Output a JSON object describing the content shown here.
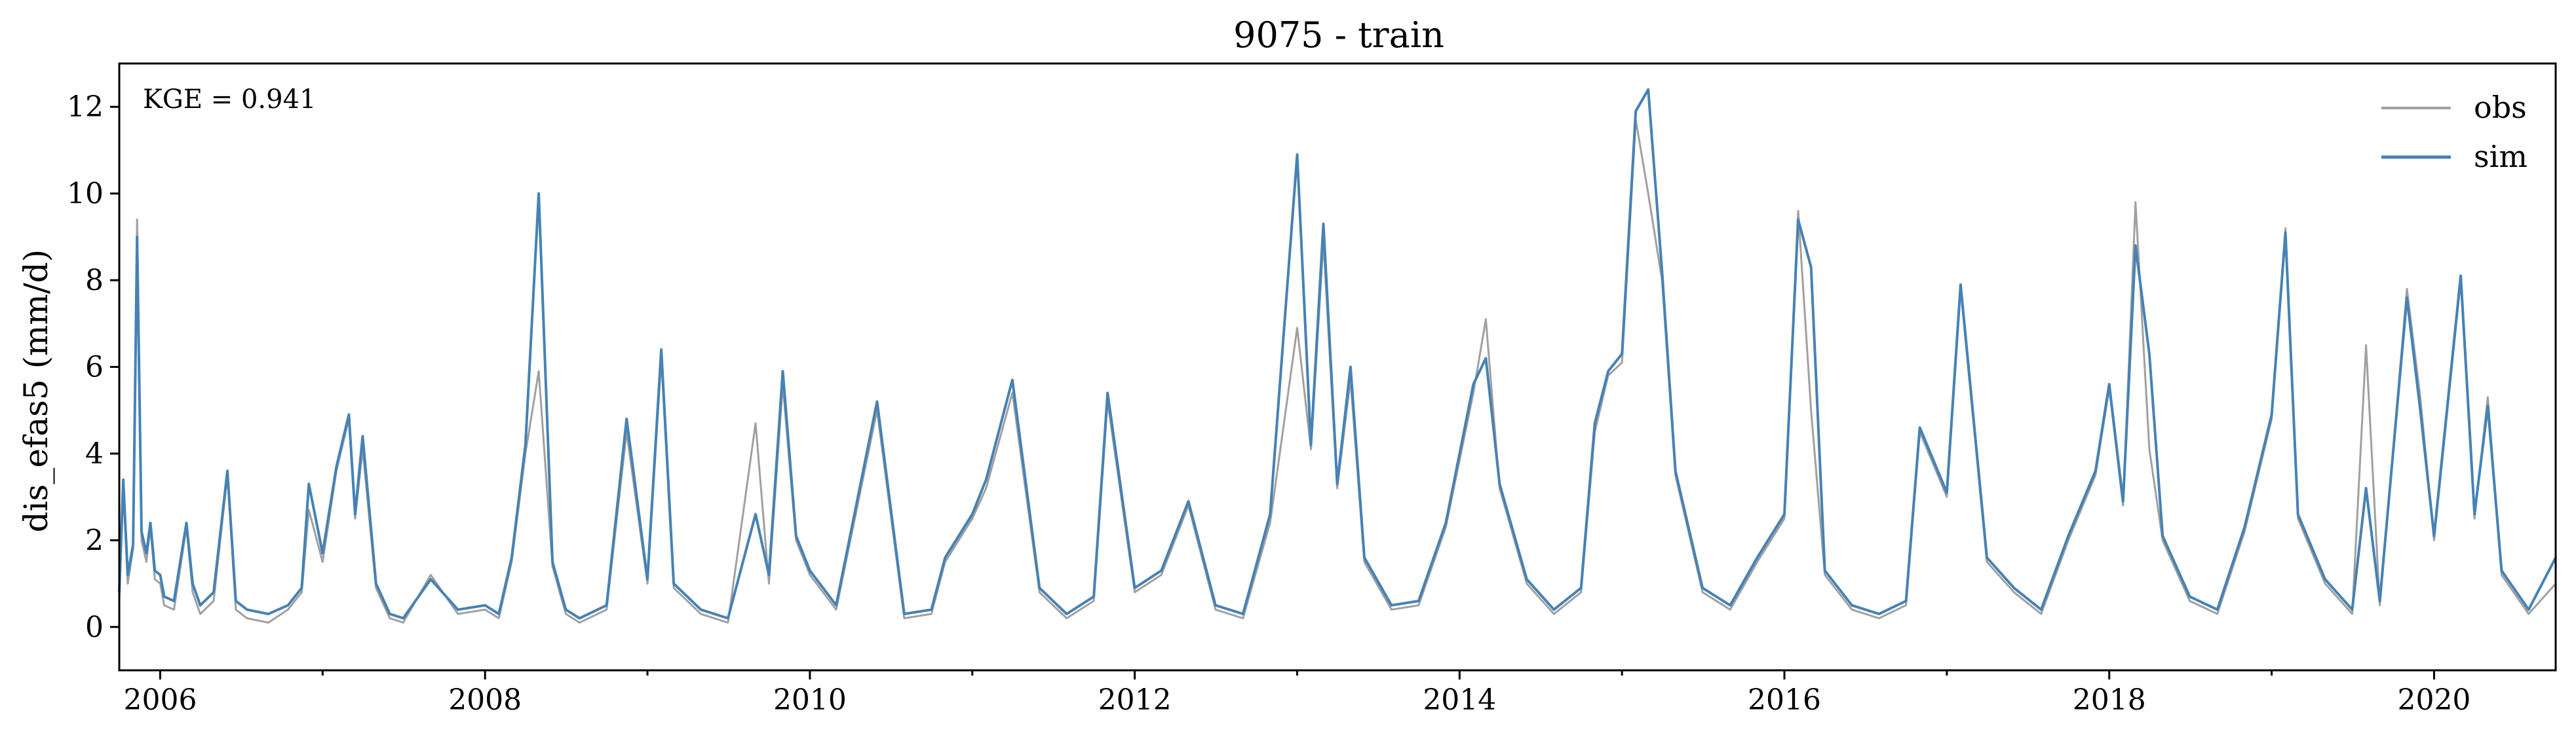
{
  "chart_data": {
    "type": "line",
    "title": "9075 - train",
    "xlabel": "",
    "ylabel": "dis_efas5 (mm/d)",
    "annotation": "KGE = 0.941",
    "xlim": [
      "2005-10-01",
      "2020-10-01"
    ],
    "ylim": [
      -1,
      13
    ],
    "x_ticks": [
      "2006",
      "2008",
      "2010",
      "2012",
      "2014",
      "2016",
      "2018",
      "2020"
    ],
    "y_ticks": [
      "0",
      "2",
      "4",
      "6",
      "8",
      "10",
      "12"
    ],
    "legend": {
      "placement": "top-right"
    },
    "grid": false,
    "series": [
      {
        "name": "obs",
        "color": "#a0a0a0",
        "x": [
          "2005-10-01",
          "2005-10-10",
          "2005-10-20",
          "2005-11-01",
          "2005-11-10",
          "2005-11-20",
          "2005-12-01",
          "2005-12-10",
          "2005-12-20",
          "2006-01-01",
          "2006-01-10",
          "2006-02-01",
          "2006-03-01",
          "2006-03-15",
          "2006-04-01",
          "2006-05-01",
          "2006-06-01",
          "2006-06-20",
          "2006-07-15",
          "2006-09-01",
          "2006-10-15",
          "2006-11-15",
          "2006-12-01",
          "2007-01-01",
          "2007-02-01",
          "2007-03-01",
          "2007-03-15",
          "2007-04-01",
          "2007-05-01",
          "2007-06-01",
          "2007-07-01",
          "2007-09-01",
          "2007-11-01",
          "2008-01-01",
          "2008-02-01",
          "2008-03-01",
          "2008-04-01",
          "2008-05-01",
          "2008-06-01",
          "2008-07-01",
          "2008-08-01",
          "2008-10-01",
          "2008-11-15",
          "2009-01-01",
          "2009-02-01",
          "2009-03-01",
          "2009-05-01",
          "2009-07-01",
          "2009-09-01",
          "2009-10-01",
          "2009-11-01",
          "2009-12-01",
          "2010-01-01",
          "2010-03-01",
          "2010-06-01",
          "2010-08-01",
          "2010-10-01",
          "2010-11-01",
          "2011-01-01",
          "2011-02-01",
          "2011-04-01",
          "2011-06-01",
          "2011-08-01",
          "2011-10-01",
          "2011-11-01",
          "2012-01-01",
          "2012-03-01",
          "2012-05-01",
          "2012-07-01",
          "2012-09-01",
          "2012-11-01",
          "2013-01-01",
          "2013-02-01",
          "2013-03-01",
          "2013-04-01",
          "2013-05-01",
          "2013-06-01",
          "2013-08-01",
          "2013-10-01",
          "2013-12-01",
          "2014-02-01",
          "2014-03-01",
          "2014-04-01",
          "2014-06-01",
          "2014-08-01",
          "2014-10-01",
          "2014-11-01",
          "2014-12-01",
          "2015-01-01",
          "2015-02-01",
          "2015-03-01",
          "2015-04-01",
          "2015-05-01",
          "2015-07-01",
          "2015-09-01",
          "2015-11-01",
          "2016-01-01",
          "2016-02-01",
          "2016-03-01",
          "2016-04-01",
          "2016-06-01",
          "2016-08-01",
          "2016-10-01",
          "2016-11-01",
          "2017-01-01",
          "2017-02-01",
          "2017-04-01",
          "2017-06-01",
          "2017-08-01",
          "2017-10-01",
          "2017-12-01",
          "2018-01-01",
          "2018-02-01",
          "2018-03-01",
          "2018-04-01",
          "2018-05-01",
          "2018-07-01",
          "2018-09-01",
          "2018-11-01",
          "2019-01-01",
          "2019-02-01",
          "2019-03-01",
          "2019-05-01",
          "2019-07-01",
          "2019-08-01",
          "2019-09-01",
          "2019-11-01",
          "2019-12-01",
          "2020-01-01",
          "2020-03-01",
          "2020-04-01",
          "2020-05-01",
          "2020-06-01",
          "2020-08-01",
          "2020-10-01"
        ],
        "values": [
          0.6,
          3.2,
          1.0,
          1.8,
          9.4,
          2.0,
          1.5,
          2.3,
          1.1,
          1.0,
          0.5,
          0.4,
          2.3,
          0.8,
          0.3,
          0.6,
          3.5,
          0.4,
          0.2,
          0.1,
          0.4,
          0.8,
          2.7,
          1.5,
          3.6,
          4.8,
          2.5,
          4.1,
          0.9,
          0.2,
          0.1,
          1.2,
          0.3,
          0.4,
          0.2,
          1.5,
          4.0,
          5.9,
          1.4,
          0.3,
          0.1,
          0.4,
          4.5,
          1.0,
          6.2,
          0.9,
          0.3,
          0.1,
          4.7,
          1.0,
          5.6,
          2.0,
          1.2,
          0.4,
          5.0,
          0.2,
          0.3,
          1.5,
          2.5,
          3.2,
          5.4,
          0.8,
          0.2,
          0.6,
          5.2,
          0.8,
          1.2,
          2.8,
          0.4,
          0.2,
          2.4,
          6.9,
          4.1,
          8.9,
          3.2,
          5.7,
          1.5,
          0.4,
          0.5,
          2.3,
          5.4,
          7.1,
          3.2,
          1.0,
          0.3,
          0.8,
          4.5,
          5.8,
          6.1,
          11.7,
          10.0,
          8.0,
          3.5,
          0.8,
          0.4,
          1.5,
          2.5,
          9.6,
          5.0,
          1.2,
          0.4,
          0.2,
          0.5,
          4.5,
          3.0,
          7.8,
          1.5,
          0.8,
          0.3,
          2.0,
          3.5,
          5.5,
          2.8,
          9.8,
          4.1,
          2.0,
          0.6,
          0.3,
          2.2,
          4.8,
          9.2,
          2.5,
          1.0,
          0.3,
          6.5,
          0.5,
          7.8,
          5.3,
          2.0,
          8.0,
          2.5,
          5.3,
          1.2,
          0.3,
          1.0
        ]
      },
      {
        "name": "sim",
        "color": "#4682b4",
        "x": [
          "2005-10-01",
          "2005-10-10",
          "2005-10-20",
          "2005-11-01",
          "2005-11-10",
          "2005-11-20",
          "2005-12-01",
          "2005-12-10",
          "2005-12-20",
          "2006-01-01",
          "2006-01-10",
          "2006-02-01",
          "2006-03-01",
          "2006-03-15",
          "2006-04-01",
          "2006-05-01",
          "2006-06-01",
          "2006-06-20",
          "2006-07-15",
          "2006-09-01",
          "2006-10-15",
          "2006-11-15",
          "2006-12-01",
          "2007-01-01",
          "2007-02-01",
          "2007-03-01",
          "2007-03-15",
          "2007-04-01",
          "2007-05-01",
          "2007-06-01",
          "2007-07-01",
          "2007-09-01",
          "2007-11-01",
          "2008-01-01",
          "2008-02-01",
          "2008-03-01",
          "2008-04-01",
          "2008-05-01",
          "2008-06-01",
          "2008-07-01",
          "2008-08-01",
          "2008-10-01",
          "2008-11-15",
          "2009-01-01",
          "2009-02-01",
          "2009-03-01",
          "2009-05-01",
          "2009-07-01",
          "2009-09-01",
          "2009-10-01",
          "2009-11-01",
          "2009-12-01",
          "2010-01-01",
          "2010-03-01",
          "2010-06-01",
          "2010-08-01",
          "2010-10-01",
          "2010-11-01",
          "2011-01-01",
          "2011-02-01",
          "2011-04-01",
          "2011-06-01",
          "2011-08-01",
          "2011-10-01",
          "2011-11-01",
          "2012-01-01",
          "2012-03-01",
          "2012-05-01",
          "2012-07-01",
          "2012-09-01",
          "2012-11-01",
          "2013-01-01",
          "2013-02-01",
          "2013-03-01",
          "2013-04-01",
          "2013-05-01",
          "2013-06-01",
          "2013-08-01",
          "2013-10-01",
          "2013-12-01",
          "2014-02-01",
          "2014-03-01",
          "2014-04-01",
          "2014-06-01",
          "2014-08-01",
          "2014-10-01",
          "2014-11-01",
          "2014-12-01",
          "2015-01-01",
          "2015-02-01",
          "2015-03-01",
          "2015-04-01",
          "2015-05-01",
          "2015-07-01",
          "2015-09-01",
          "2015-11-01",
          "2016-01-01",
          "2016-02-01",
          "2016-03-01",
          "2016-04-01",
          "2016-06-01",
          "2016-08-01",
          "2016-10-01",
          "2016-11-01",
          "2017-01-01",
          "2017-02-01",
          "2017-04-01",
          "2017-06-01",
          "2017-08-01",
          "2017-10-01",
          "2017-12-01",
          "2018-01-01",
          "2018-02-01",
          "2018-03-01",
          "2018-04-01",
          "2018-05-01",
          "2018-07-01",
          "2018-09-01",
          "2018-11-01",
          "2019-01-01",
          "2019-02-01",
          "2019-03-01",
          "2019-05-01",
          "2019-07-01",
          "2019-08-01",
          "2019-09-01",
          "2019-11-01",
          "2019-12-01",
          "2020-01-01",
          "2020-03-01",
          "2020-04-01",
          "2020-05-01",
          "2020-06-01",
          "2020-08-01",
          "2020-10-01"
        ],
        "values": [
          0.8,
          3.4,
          1.2,
          1.9,
          9.0,
          2.2,
          1.7,
          2.4,
          1.3,
          1.2,
          0.7,
          0.6,
          2.4,
          1.0,
          0.5,
          0.8,
          3.6,
          0.6,
          0.4,
          0.3,
          0.5,
          0.9,
          3.3,
          1.7,
          3.7,
          4.9,
          2.6,
          4.4,
          1.0,
          0.3,
          0.2,
          1.1,
          0.4,
          0.5,
          0.3,
          1.6,
          4.2,
          10.0,
          1.5,
          0.4,
          0.2,
          0.5,
          4.8,
          1.1,
          6.4,
          1.0,
          0.4,
          0.2,
          2.6,
          1.2,
          5.9,
          2.1,
          1.3,
          0.5,
          5.2,
          0.3,
          0.4,
          1.6,
          2.6,
          3.4,
          5.7,
          0.9,
          0.3,
          0.7,
          5.4,
          0.9,
          1.3,
          2.9,
          0.5,
          0.3,
          2.6,
          10.9,
          4.2,
          9.3,
          3.3,
          6.0,
          1.6,
          0.5,
          0.6,
          2.4,
          5.6,
          6.2,
          3.3,
          1.1,
          0.4,
          0.9,
          4.7,
          5.9,
          6.3,
          11.9,
          12.4,
          8.2,
          3.6,
          0.9,
          0.5,
          1.6,
          2.6,
          9.4,
          8.3,
          1.3,
          0.5,
          0.3,
          0.6,
          4.6,
          3.1,
          7.9,
          1.6,
          0.9,
          0.4,
          2.1,
          3.6,
          5.6,
          2.9,
          8.8,
          6.3,
          2.1,
          0.7,
          0.4,
          2.3,
          4.9,
          9.1,
          2.6,
          1.1,
          0.4,
          3.2,
          0.6,
          7.6,
          5.0,
          2.1,
          8.1,
          2.6,
          5.1,
          1.3,
          0.4,
          1.6
        ]
      }
    ]
  }
}
